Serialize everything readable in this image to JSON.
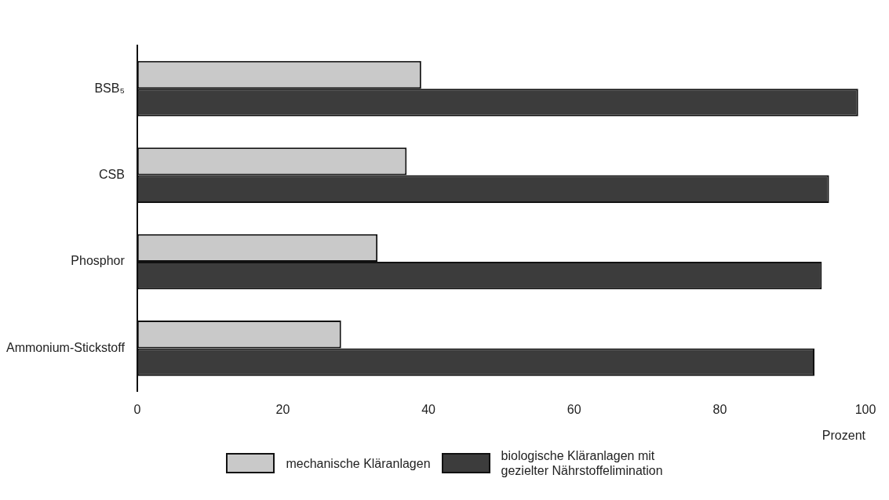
{
  "chart_data": {
    "type": "bar",
    "orientation": "horizontal",
    "xlabel": "Prozent",
    "categories": [
      "BSB₅",
      "CSB",
      "Phosphor",
      "Ammonium-Stickstoff"
    ],
    "series": [
      {
        "name": "mechanische Kläranlagen",
        "color": "#c9c9c9",
        "values": [
          39,
          37,
          33,
          28
        ]
      },
      {
        "name": "biologische Kläranlagen mit\ngezielter Nährstoffelimination",
        "color": "#3c3c3c",
        "values": [
          99,
          95,
          94,
          93
        ]
      }
    ],
    "xlim": [
      0,
      100
    ],
    "xticks": [
      0,
      20,
      40,
      60,
      80,
      100
    ],
    "grid": false,
    "legend": "bottom"
  }
}
